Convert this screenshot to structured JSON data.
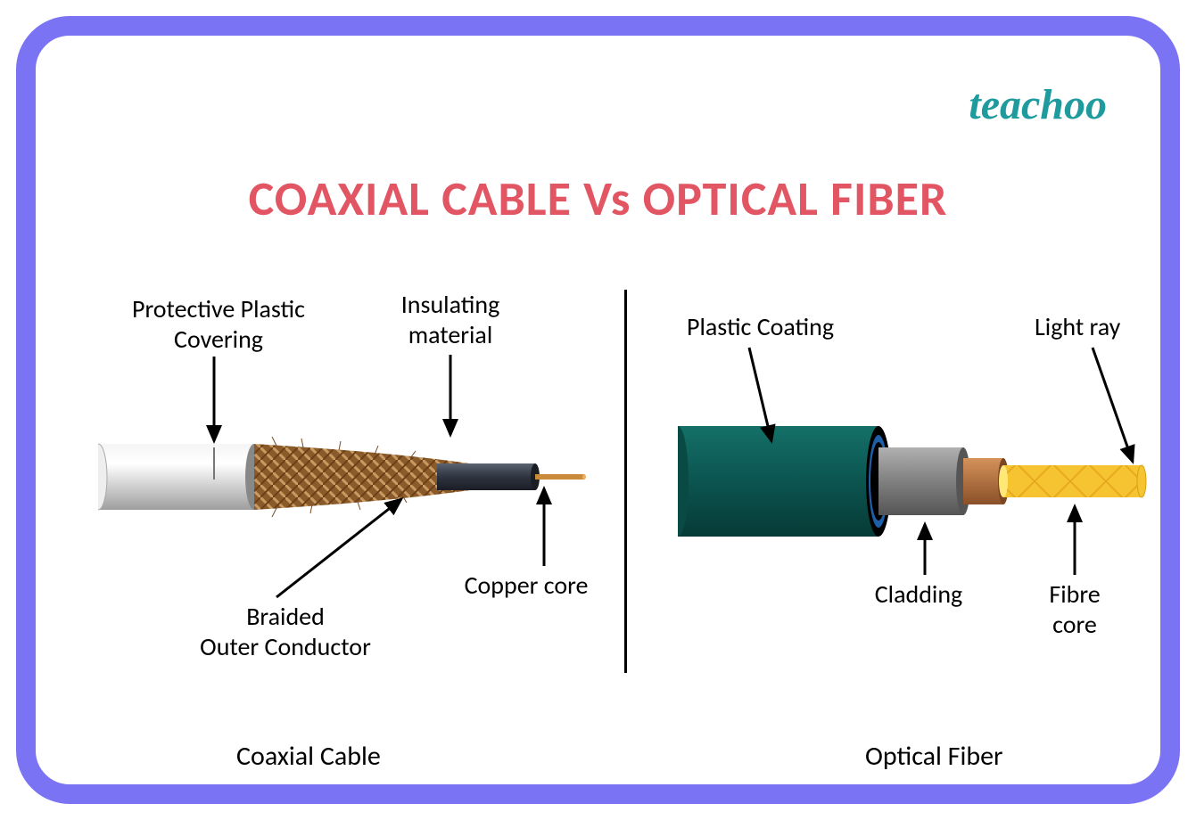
{
  "frame": {
    "border_color": "#7a74f5",
    "border_width": 22,
    "radius": 60,
    "background": "#ffffff"
  },
  "logo": {
    "text": "teachoo",
    "color": "#1f9b9d",
    "fontsize": 48
  },
  "title": {
    "text": "COAXIAL CABLE  Vs  OPTICAL FIBER",
    "color": "#e25664",
    "fontsize": 54,
    "fontweight": 700
  },
  "divider": {
    "color": "#000000",
    "width": 3
  },
  "labels": {
    "coax": {
      "protective": "Protective Plastic\nCovering",
      "insulating": "Insulating\nmaterial",
      "braided": "Braided\nOuter Conductor",
      "copper": "Copper core"
    },
    "fiber": {
      "plastic": "Plastic Coating",
      "lightray": "Light ray",
      "cladding": "Cladding",
      "core": "Fibre\ncore"
    }
  },
  "captions": {
    "coax": "Coaxial Cable",
    "fiber": "Optical Fiber"
  },
  "label_fontsize": 28,
  "caption_fontsize": 30,
  "coax_cable": {
    "jacket_color_light": "#dcdcdc",
    "jacket_color_dark": "#bfbfbf",
    "braid_color_dark": "#7a4a20",
    "braid_color_light": "#c48a52",
    "dielectric_color": "#2e3440",
    "core_color": "#c98b3a"
  },
  "fiber_cable": {
    "coating_color": "#0d5a55",
    "coating_highlight": "#1a7a72",
    "inner_ring_blue": "#1e5fa8",
    "inner_ring_black": "#000000",
    "cladding_color": "#808080",
    "cladding_dark": "#5a5a5a",
    "buffer_color": "#b06a30",
    "core_color": "#f5c430",
    "core_pattern": "#d49a1a"
  }
}
